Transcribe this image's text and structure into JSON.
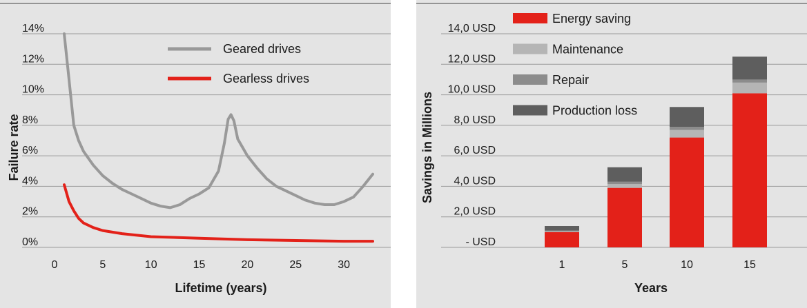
{
  "chart_data": [
    {
      "type": "line",
      "title": "",
      "xlabel": "Lifetime (years)",
      "ylabel": "Failure rate",
      "xlim": [
        0,
        33
      ],
      "ylim": [
        0,
        14
      ],
      "x_ticks": [
        0,
        5,
        10,
        15,
        20,
        25,
        30
      ],
      "x_tick_labels": [
        "0",
        "5",
        "10",
        "15",
        "20",
        "25",
        "30"
      ],
      "y_ticks": [
        0,
        2,
        4,
        6,
        8,
        10,
        12,
        14
      ],
      "y_tick_labels": [
        "0%",
        "2%",
        "4%",
        "6%",
        "8%",
        "10%",
        "12%",
        "14%"
      ],
      "grid": "horizontal",
      "legend_position": "top-right",
      "series": [
        {
          "name": "Geared drives",
          "color": "#999999",
          "points": [
            [
              1,
              14
            ],
            [
              1.5,
              11
            ],
            [
              2,
              8
            ],
            [
              2.5,
              7
            ],
            [
              3,
              6.3
            ],
            [
              4,
              5.4
            ],
            [
              5,
              4.7
            ],
            [
              6,
              4.2
            ],
            [
              7,
              3.8
            ],
            [
              8,
              3.5
            ],
            [
              9,
              3.2
            ],
            [
              10,
              2.9
            ],
            [
              11,
              2.7
            ],
            [
              12,
              2.6
            ],
            [
              13,
              2.8
            ],
            [
              14,
              3.2
            ],
            [
              15,
              3.5
            ],
            [
              16,
              3.9
            ],
            [
              17,
              5
            ],
            [
              17.6,
              6.8
            ],
            [
              18,
              8.4
            ],
            [
              18.3,
              8.7
            ],
            [
              18.6,
              8.3
            ],
            [
              19,
              7.1
            ],
            [
              20,
              6
            ],
            [
              21,
              5.2
            ],
            [
              22,
              4.5
            ],
            [
              23,
              4
            ],
            [
              24,
              3.7
            ],
            [
              25,
              3.4
            ],
            [
              26,
              3.1
            ],
            [
              27,
              2.9
            ],
            [
              28,
              2.8
            ],
            [
              29,
              2.8
            ],
            [
              30,
              3
            ],
            [
              31,
              3.3
            ],
            [
              32,
              4
            ],
            [
              33,
              4.8
            ]
          ]
        },
        {
          "name": "Gearless drives",
          "color": "#e32119",
          "points": [
            [
              1,
              4.1
            ],
            [
              1.5,
              3
            ],
            [
              2,
              2.4
            ],
            [
              2.5,
              1.9
            ],
            [
              3,
              1.6
            ],
            [
              4,
              1.3
            ],
            [
              5,
              1.1
            ],
            [
              7,
              0.9
            ],
            [
              10,
              0.7
            ],
            [
              15,
              0.6
            ],
            [
              20,
              0.5
            ],
            [
              25,
              0.45
            ],
            [
              30,
              0.4
            ],
            [
              33,
              0.4
            ]
          ]
        }
      ]
    },
    {
      "type": "bar",
      "stacked": true,
      "title": "",
      "xlabel": "Years",
      "ylabel": "Savings in Millions",
      "ylim": [
        0,
        14
      ],
      "categories": [
        "1",
        "5",
        "10",
        "15"
      ],
      "y_ticks": [
        0,
        2,
        4,
        6,
        8,
        10,
        12,
        14
      ],
      "y_tick_labels": [
        "- USD",
        "2,0 USD",
        "4,0 USD",
        "6,0 USD",
        "8,0 USD",
        "10,0 USD",
        "12,0 USD",
        "14,0 USD"
      ],
      "grid": "horizontal",
      "legend_position": "top-left",
      "series": [
        {
          "name": "Energy saving",
          "color": "#e32119",
          "values": [
            1.0,
            3.9,
            7.2,
            10.1
          ]
        },
        {
          "name": "Maintenance",
          "color": "#b5b5b5",
          "values": [
            0.05,
            0.25,
            0.5,
            0.7
          ]
        },
        {
          "name": "Repair",
          "color": "#8c8c8c",
          "values": [
            0.05,
            0.15,
            0.2,
            0.2
          ]
        },
        {
          "name": "Production loss",
          "color": "#5e5e5e",
          "values": [
            0.3,
            0.95,
            1.3,
            1.5
          ]
        }
      ]
    }
  ]
}
